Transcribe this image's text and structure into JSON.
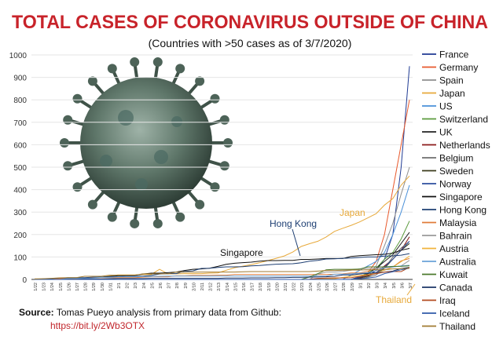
{
  "chart_data": {
    "type": "line",
    "title": "TOTAL CASES OF CORONAVIRUS OUTSIDE OF CHINA",
    "subtitle": "(Countries with >50 cases as of 3/7/2020)",
    "xlabel": "",
    "ylabel": "",
    "ylim": [
      0,
      1000
    ],
    "yticks": [
      0,
      100,
      200,
      300,
      400,
      500,
      600,
      700,
      800,
      900,
      1000
    ],
    "x": [
      "1/22",
      "1/23",
      "1/24",
      "1/25",
      "1/26",
      "1/27",
      "1/28",
      "1/29",
      "1/30",
      "1/31",
      "2/1",
      "2/2",
      "2/3",
      "2/4",
      "2/5",
      "2/6",
      "2/7",
      "2/8",
      "2/9",
      "2/10",
      "2/11",
      "2/12",
      "2/13",
      "2/14",
      "2/15",
      "2/16",
      "2/17",
      "2/18",
      "2/19",
      "2/20",
      "2/21",
      "2/22",
      "2/23",
      "2/24",
      "2/25",
      "2/26",
      "2/27",
      "2/28",
      "2/29",
      "3/1",
      "3/2",
      "3/3",
      "3/4",
      "3/5",
      "3/6",
      "3/7"
    ],
    "series": [
      {
        "name": "France",
        "color": "#1f3a93",
        "values": [
          0,
          0,
          0,
          0,
          0,
          0,
          0,
          0,
          0,
          0,
          0,
          0,
          0,
          0,
          0,
          0,
          0,
          0,
          0,
          0,
          0,
          0,
          0,
          0,
          0,
          0,
          0,
          0,
          0,
          0,
          0,
          0,
          0,
          0,
          0,
          0,
          0,
          0,
          0,
          12,
          18,
          40,
          90,
          200,
          500,
          950
        ]
      },
      {
        "name": "Germany",
        "color": "#e8582b",
        "values": [
          0,
          0,
          0,
          0,
          0,
          0,
          0,
          0,
          0,
          0,
          0,
          0,
          0,
          0,
          0,
          0,
          0,
          0,
          0,
          0,
          0,
          0,
          0,
          0,
          0,
          0,
          0,
          0,
          0,
          0,
          0,
          0,
          0,
          0,
          0,
          0,
          0,
          0,
          0,
          10,
          30,
          80,
          200,
          400,
          600,
          800
        ]
      },
      {
        "name": "Spain",
        "color": "#8e8e8e",
        "values": [
          0,
          0,
          0,
          0,
          0,
          0,
          0,
          0,
          0,
          0,
          0,
          0,
          0,
          0,
          0,
          0,
          0,
          0,
          0,
          0,
          0,
          0,
          0,
          0,
          0,
          0,
          0,
          0,
          0,
          0,
          0,
          0,
          0,
          0,
          0,
          0,
          0,
          0,
          0,
          5,
          20,
          60,
          150,
          250,
          380,
          500
        ]
      },
      {
        "name": "Japan",
        "color": "#e7a93a",
        "values": [
          2,
          2,
          2,
          2,
          4,
          4,
          7,
          7,
          11,
          15,
          20,
          20,
          20,
          22,
          22,
          45,
          25,
          25,
          26,
          26,
          26,
          28,
          29,
          41,
          52,
          59,
          66,
          74,
          84,
          94,
          105,
          122,
          147,
          159,
          170,
          189,
          214,
          228,
          241,
          256,
          274,
          293,
          331,
          360,
          420,
          461
        ]
      },
      {
        "name": "US",
        "color": "#4a90d9",
        "values": [
          0,
          0,
          0,
          0,
          0,
          0,
          0,
          0,
          0,
          0,
          0,
          0,
          0,
          0,
          0,
          0,
          0,
          0,
          0,
          0,
          0,
          0,
          0,
          0,
          0,
          0,
          0,
          0,
          0,
          0,
          0,
          0,
          0,
          0,
          0,
          0,
          0,
          0,
          20,
          40,
          60,
          80,
          120,
          200,
          300,
          420
        ]
      },
      {
        "name": "Switzerland",
        "color": "#5a9a3c",
        "values": [
          0,
          0,
          0,
          0,
          0,
          0,
          0,
          0,
          0,
          0,
          0,
          0,
          0,
          0,
          0,
          0,
          0,
          0,
          0,
          0,
          0,
          0,
          0,
          0,
          0,
          0,
          0,
          0,
          0,
          0,
          0,
          0,
          0,
          0,
          0,
          0,
          0,
          0,
          0,
          10,
          30,
          50,
          90,
          120,
          180,
          260
        ]
      },
      {
        "name": "UK",
        "color": "#222222",
        "values": [
          0,
          0,
          0,
          0,
          0,
          0,
          0,
          0,
          0,
          0,
          0,
          0,
          0,
          0,
          0,
          0,
          0,
          0,
          0,
          0,
          0,
          0,
          0,
          0,
          0,
          0,
          0,
          0,
          0,
          0,
          0,
          0,
          0,
          0,
          0,
          0,
          0,
          0,
          0,
          10,
          25,
          50,
          80,
          110,
          160,
          210
        ]
      },
      {
        "name": "Netherlands",
        "color": "#8b1a1a",
        "values": [
          0,
          0,
          0,
          0,
          0,
          0,
          0,
          0,
          0,
          0,
          0,
          0,
          0,
          0,
          0,
          0,
          0,
          0,
          0,
          0,
          0,
          0,
          0,
          0,
          0,
          0,
          0,
          0,
          0,
          0,
          0,
          0,
          0,
          0,
          0,
          0,
          0,
          0,
          0,
          5,
          15,
          30,
          60,
          90,
          130,
          190
        ]
      },
      {
        "name": "Belgium",
        "color": "#6e6e6e",
        "values": [
          0,
          0,
          0,
          0,
          0,
          0,
          0,
          0,
          0,
          0,
          0,
          0,
          0,
          0,
          0,
          0,
          0,
          0,
          0,
          0,
          0,
          0,
          0,
          0,
          0,
          0,
          0,
          0,
          0,
          0,
          0,
          0,
          0,
          0,
          0,
          0,
          0,
          0,
          0,
          2,
          10,
          20,
          50,
          100,
          140,
          170
        ]
      },
      {
        "name": "Sweden",
        "color": "#3a3a1a",
        "values": [
          0,
          0,
          0,
          0,
          0,
          0,
          0,
          0,
          0,
          0,
          0,
          0,
          0,
          0,
          0,
          0,
          0,
          0,
          0,
          0,
          0,
          0,
          0,
          0,
          0,
          0,
          0,
          0,
          0,
          0,
          0,
          0,
          0,
          0,
          0,
          0,
          0,
          0,
          0,
          8,
          14,
          30,
          50,
          90,
          130,
          160
        ]
      },
      {
        "name": "Norway",
        "color": "#2d4f9e",
        "values": [
          0,
          0,
          0,
          0,
          0,
          0,
          0,
          0,
          0,
          0,
          0,
          0,
          0,
          0,
          0,
          0,
          0,
          0,
          0,
          0,
          0,
          0,
          0,
          0,
          0,
          0,
          0,
          0,
          0,
          0,
          0,
          0,
          0,
          0,
          0,
          0,
          0,
          0,
          0,
          10,
          20,
          30,
          55,
          90,
          130,
          170
        ]
      },
      {
        "name": "Singapore",
        "color": "#111111",
        "values": [
          0,
          0,
          1,
          3,
          4,
          5,
          7,
          7,
          10,
          13,
          16,
          18,
          18,
          24,
          28,
          28,
          30,
          33,
          40,
          45,
          47,
          50,
          58,
          67,
          72,
          75,
          77,
          81,
          84,
          84,
          85,
          85,
          89,
          89,
          91,
          93,
          93,
          93,
          102,
          106,
          108,
          110,
          112,
          117,
          130,
          138
        ]
      },
      {
        "name": "Hong Kong",
        "color": "#1e3f73",
        "values": [
          0,
          2,
          2,
          5,
          8,
          8,
          8,
          10,
          10,
          12,
          13,
          15,
          15,
          15,
          18,
          24,
          26,
          26,
          36,
          38,
          49,
          50,
          53,
          56,
          56,
          57,
          60,
          62,
          65,
          68,
          69,
          70,
          74,
          81,
          85,
          91,
          92,
          94,
          95,
          98,
          100,
          100,
          104,
          105,
          108,
          115
        ]
      },
      {
        "name": "Malaysia",
        "color": "#e07b39",
        "values": [
          0,
          0,
          0,
          3,
          4,
          4,
          4,
          7,
          8,
          8,
          8,
          8,
          8,
          10,
          12,
          12,
          12,
          16,
          16,
          18,
          18,
          18,
          19,
          19,
          22,
          22,
          22,
          22,
          22,
          22,
          22,
          22,
          22,
          22,
          22,
          22,
          23,
          25,
          29,
          29,
          36,
          50,
          50,
          55,
          83,
          93
        ]
      },
      {
        "name": "Bahrain",
        "color": "#9a9a9a",
        "values": [
          0,
          0,
          0,
          0,
          0,
          0,
          0,
          0,
          0,
          0,
          0,
          0,
          0,
          0,
          0,
          0,
          0,
          0,
          0,
          0,
          0,
          0,
          0,
          0,
          0,
          0,
          0,
          0,
          0,
          0,
          0,
          0,
          0,
          0,
          23,
          33,
          33,
          36,
          41,
          47,
          49,
          49,
          52,
          55,
          60,
          85
        ]
      },
      {
        "name": "Austria",
        "color": "#f0b43c",
        "values": [
          0,
          0,
          0,
          0,
          0,
          0,
          0,
          0,
          0,
          0,
          0,
          0,
          0,
          0,
          0,
          0,
          0,
          0,
          0,
          0,
          0,
          0,
          0,
          0,
          0,
          0,
          0,
          0,
          0,
          0,
          0,
          0,
          0,
          0,
          2,
          3,
          3,
          9,
          14,
          18,
          21,
          29,
          41,
          55,
          79,
          104
        ]
      },
      {
        "name": "Australia",
        "color": "#6aa3d8",
        "values": [
          0,
          0,
          0,
          0,
          4,
          5,
          5,
          6,
          9,
          9,
          12,
          12,
          12,
          13,
          13,
          14,
          15,
          15,
          15,
          15,
          15,
          15,
          15,
          15,
          15,
          15,
          15,
          15,
          15,
          15,
          15,
          15,
          15,
          15,
          15,
          15,
          23,
          23,
          25,
          27,
          30,
          39,
          52,
          55,
          60,
          63
        ]
      },
      {
        "name": "Kuwait",
        "color": "#4b7a2c",
        "values": [
          0,
          0,
          0,
          0,
          0,
          0,
          0,
          0,
          0,
          0,
          0,
          0,
          0,
          0,
          0,
          0,
          0,
          0,
          0,
          0,
          0,
          0,
          0,
          0,
          0,
          0,
          0,
          0,
          0,
          0,
          0,
          0,
          0,
          11,
          26,
          43,
          45,
          45,
          45,
          46,
          56,
          56,
          56,
          58,
          58,
          61
        ]
      },
      {
        "name": "Canada",
        "color": "#1c3466",
        "values": [
          0,
          0,
          0,
          0,
          1,
          1,
          2,
          2,
          2,
          3,
          4,
          4,
          4,
          4,
          5,
          5,
          5,
          5,
          5,
          5,
          5,
          5,
          5,
          6,
          6,
          6,
          7,
          7,
          7,
          8,
          8,
          9,
          9,
          10,
          11,
          12,
          14,
          20,
          20,
          24,
          27,
          30,
          33,
          37,
          49,
          54
        ]
      },
      {
        "name": "Iraq",
        "color": "#b24a1e",
        "values": [
          0,
          0,
          0,
          0,
          0,
          0,
          0,
          0,
          0,
          0,
          0,
          0,
          0,
          0,
          0,
          0,
          0,
          0,
          0,
          0,
          0,
          0,
          0,
          0,
          0,
          0,
          0,
          0,
          0,
          0,
          0,
          0,
          0,
          1,
          5,
          6,
          7,
          7,
          8,
          13,
          19,
          26,
          32,
          35,
          35,
          54
        ]
      },
      {
        "name": "Iceland",
        "color": "#2f5aa8",
        "values": [
          0,
          0,
          0,
          0,
          0,
          0,
          0,
          0,
          0,
          0,
          0,
          0,
          0,
          0,
          0,
          0,
          0,
          0,
          0,
          0,
          0,
          0,
          0,
          0,
          0,
          0,
          0,
          0,
          0,
          0,
          0,
          0,
          0,
          0,
          0,
          0,
          0,
          0,
          1,
          3,
          6,
          11,
          26,
          34,
          43,
          50
        ]
      },
      {
        "name": "Thailand",
        "color": "#a07a30",
        "values": [
          2,
          3,
          5,
          7,
          8,
          8,
          14,
          14,
          14,
          19,
          19,
          19,
          19,
          25,
          25,
          25,
          25,
          32,
          32,
          32,
          33,
          33,
          33,
          33,
          33,
          34,
          35,
          35,
          35,
          35,
          35,
          35,
          35,
          35,
          37,
          40,
          40,
          41,
          42,
          42,
          43,
          43,
          43,
          47,
          48,
          50
        ]
      }
    ],
    "annotations": [
      {
        "text": "Hong Kong",
        "color": "#1e3f73"
      },
      {
        "text": "Singapore",
        "color": "#111111"
      },
      {
        "text": "Japan",
        "color": "#e7a93a"
      },
      {
        "text": "Thailand",
        "color": "#e7a93a"
      }
    ],
    "legend_position": "right",
    "grid": true
  },
  "source": {
    "label": "Source:",
    "text": "Tomas Pueyo analysis from primary data from Github:",
    "url": "https://bit.ly/2Wb3OTX"
  }
}
